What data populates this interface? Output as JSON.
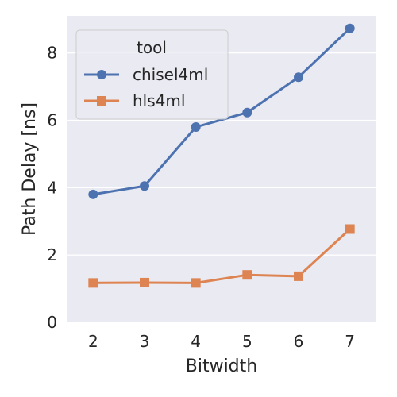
{
  "chart_data": {
    "type": "line",
    "xlabel": "Bitwidth",
    "ylabel": "Path Delay [ns]",
    "categories": [
      2,
      3,
      4,
      5,
      6,
      7
    ],
    "ylim": [
      0,
      9.1
    ],
    "yticks": [
      0,
      2,
      4,
      6,
      8
    ],
    "grid": true,
    "legend": {
      "title": "tool",
      "placement": "top-left"
    },
    "series": [
      {
        "name": "chisel4ml",
        "values": [
          3.8,
          4.05,
          5.8,
          6.23,
          7.28,
          8.73
        ],
        "color": "#4c72b0",
        "marker": "circle"
      },
      {
        "name": "hls4ml",
        "values": [
          1.17,
          1.18,
          1.17,
          1.41,
          1.37,
          2.77
        ],
        "color": "#dd8452",
        "marker": "square"
      }
    ]
  },
  "style": {
    "plot_bg": "#eaeaf2",
    "grid_color": "#ffffff"
  }
}
